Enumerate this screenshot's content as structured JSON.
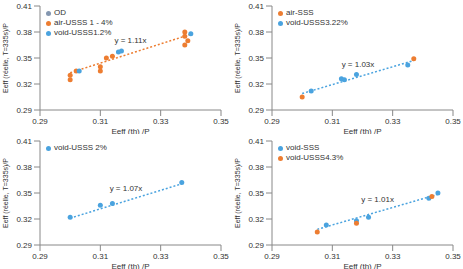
{
  "chart_data": [
    {
      "type": "scatter",
      "x_label": "Eeff (th) /P",
      "y_label": "Eeff (réelle, T=335s)/P",
      "xlim": [
        0.29,
        0.35
      ],
      "xticks": [
        0.29,
        0.31,
        0.33,
        0.35
      ],
      "ylim": [
        0.29,
        0.41
      ],
      "yticks": [
        0.29,
        0.32,
        0.35,
        0.38,
        0.41
      ],
      "grid": false,
      "legend": "top-left",
      "series": [
        {
          "name": "OD",
          "color": "#8497b0",
          "marker": "circle",
          "x": [],
          "values": []
        },
        {
          "name": "air-USSS 1 - 4%",
          "color": "#ed7d31",
          "marker": "circle",
          "x": [
            0.3,
            0.3,
            0.302,
            0.31,
            0.31,
            0.312,
            0.314,
            0.338,
            0.338,
            0.338,
            0.339
          ],
          "values": [
            0.33,
            0.325,
            0.335,
            0.335,
            0.34,
            0.35,
            0.352,
            0.38,
            0.375,
            0.365,
            0.37
          ]
        },
        {
          "name": "void-USSS1.2%",
          "color": "#4aa3df",
          "marker": "circle",
          "x": [
            0.303,
            0.316,
            0.317,
            0.34
          ],
          "values": [
            0.335,
            0.357,
            0.358,
            0.378
          ]
        }
      ],
      "trendline": {
        "label": "y = 1.11x",
        "slope": 1.11,
        "x": [
          0.3,
          0.34
        ],
        "color": "#ed7d31",
        "line_style": "dotted"
      }
    },
    {
      "type": "scatter",
      "x_label": "Eeff (th) /P",
      "y_label": "Eeff (réelle, T=335s)/P",
      "xlim": [
        0.29,
        0.35
      ],
      "xticks": [
        0.29,
        0.31,
        0.33,
        0.35
      ],
      "ylim": [
        0.29,
        0.41
      ],
      "yticks": [
        0.29,
        0.32,
        0.35,
        0.38,
        0.41
      ],
      "grid": false,
      "legend": "top-left",
      "series": [
        {
          "name": "air-SSS",
          "color": "#ed7d31",
          "marker": "circle",
          "x": [
            0.3,
            0.337
          ],
          "values": [
            0.305,
            0.349
          ]
        },
        {
          "name": "void-USSS3.22%",
          "color": "#4aa3df",
          "marker": "circle",
          "x": [
            0.303,
            0.313,
            0.314,
            0.318,
            0.335
          ],
          "values": [
            0.312,
            0.326,
            0.325,
            0.331,
            0.342
          ]
        }
      ],
      "trendline": {
        "label": "y = 1.03x",
        "slope": 1.03,
        "x": [
          0.3,
          0.337
        ],
        "color": "#4aa3df",
        "line_style": "dotted"
      }
    },
    {
      "type": "scatter",
      "x_label": "Eeff (th) /P",
      "y_label": "Eeff (réelle, T=335s)/P",
      "xlim": [
        0.29,
        0.35
      ],
      "xticks": [
        0.29,
        0.31,
        0.33,
        0.35
      ],
      "ylim": [
        0.29,
        0.41
      ],
      "yticks": [
        0.29,
        0.32,
        0.35,
        0.38,
        0.41
      ],
      "grid": false,
      "legend": "top-left",
      "series": [
        {
          "name": "void-USSS 2%",
          "color": "#4aa3df",
          "marker": "circle",
          "x": [
            0.3,
            0.31,
            0.314,
            0.337
          ],
          "values": [
            0.322,
            0.336,
            0.338,
            0.362
          ]
        }
      ],
      "trendline": {
        "label": "y = 1.07x",
        "slope": 1.07,
        "x": [
          0.3,
          0.337
        ],
        "color": "#4aa3df",
        "line_style": "dotted"
      }
    },
    {
      "type": "scatter",
      "x_label": "Eeff (th) /P",
      "y_label": "Eeff (réelle, T=335s)/P",
      "xlim": [
        0.29,
        0.35
      ],
      "xticks": [
        0.29,
        0.31,
        0.33,
        0.35
      ],
      "ylim": [
        0.29,
        0.41
      ],
      "yticks": [
        0.29,
        0.32,
        0.35,
        0.38,
        0.41
      ],
      "grid": false,
      "legend": "top-left",
      "series": [
        {
          "name": "void-SSS",
          "color": "#4aa3df",
          "marker": "circle",
          "x": [
            0.308,
            0.318,
            0.322,
            0.342,
            0.345
          ],
          "values": [
            0.313,
            0.318,
            0.322,
            0.344,
            0.35
          ]
        },
        {
          "name": "void-USSS4.3%",
          "color": "#ed7d31",
          "marker": "circle",
          "x": [
            0.305,
            0.318,
            0.343
          ],
          "values": [
            0.305,
            0.315,
            0.346
          ]
        }
      ],
      "trendline": {
        "label": "y = 1.01x",
        "slope": 1.01,
        "x": [
          0.305,
          0.345
        ],
        "color": "#4aa3df",
        "line_style": "dotted"
      }
    }
  ]
}
